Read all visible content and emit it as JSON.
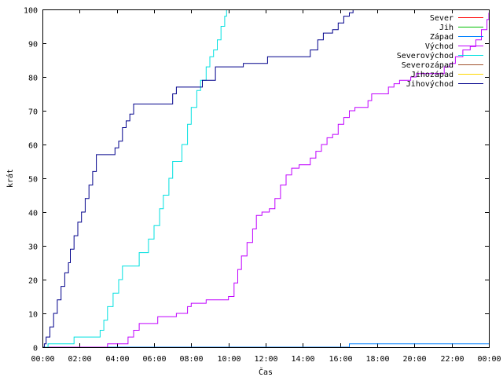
{
  "chart_data": {
    "type": "line",
    "title": "",
    "xlabel": "Čas",
    "ylabel": "krát",
    "xlim": [
      0,
      24
    ],
    "ylim": [
      0,
      100
    ],
    "grid": false,
    "legend_position": "top-right",
    "x_ticks": [
      {
        "value": 0,
        "label": "00:00"
      },
      {
        "value": 2,
        "label": "02:00"
      },
      {
        "value": 4,
        "label": "04:00"
      },
      {
        "value": 6,
        "label": "06:00"
      },
      {
        "value": 8,
        "label": "08:00"
      },
      {
        "value": 10,
        "label": "10:00"
      },
      {
        "value": 12,
        "label": "12:00"
      },
      {
        "value": 14,
        "label": "14:00"
      },
      {
        "value": 16,
        "label": "16:00"
      },
      {
        "value": 18,
        "label": "18:00"
      },
      {
        "value": 20,
        "label": "20:00"
      },
      {
        "value": 22,
        "label": "22:00"
      },
      {
        "value": 24,
        "label": "00:00"
      }
    ],
    "y_ticks": [
      {
        "value": 0,
        "label": "0"
      },
      {
        "value": 10,
        "label": "10"
      },
      {
        "value": 20,
        "label": "20"
      },
      {
        "value": 30,
        "label": "30"
      },
      {
        "value": 40,
        "label": "40"
      },
      {
        "value": 50,
        "label": "50"
      },
      {
        "value": 60,
        "label": "60"
      },
      {
        "value": 70,
        "label": "70"
      },
      {
        "value": 80,
        "label": "80"
      },
      {
        "value": 90,
        "label": "90"
      },
      {
        "value": 100,
        "label": "100"
      }
    ],
    "series": [
      {
        "name": "Sever",
        "color": "#ff0000",
        "step": true,
        "points": []
      },
      {
        "name": "Jih",
        "color": "#00c000",
        "step": true,
        "points": []
      },
      {
        "name": "Západ",
        "color": "#0080ff",
        "step": true,
        "points": [
          [
            0,
            0
          ],
          [
            16.5,
            0
          ],
          [
            16.5,
            1
          ],
          [
            24,
            1
          ]
        ]
      },
      {
        "name": "Východ",
        "color": "#c000ff",
        "step": true,
        "points": [
          [
            0,
            0
          ],
          [
            3.5,
            0
          ],
          [
            3.5,
            1
          ],
          [
            4.6,
            1
          ],
          [
            4.6,
            3
          ],
          [
            4.9,
            3
          ],
          [
            4.9,
            5
          ],
          [
            5.2,
            5
          ],
          [
            5.2,
            7
          ],
          [
            6.2,
            7
          ],
          [
            6.2,
            9
          ],
          [
            7.2,
            9
          ],
          [
            7.2,
            10
          ],
          [
            7.8,
            10
          ],
          [
            7.8,
            12
          ],
          [
            8.0,
            12
          ],
          [
            8.0,
            13
          ],
          [
            8.8,
            13
          ],
          [
            8.8,
            14
          ],
          [
            9.8,
            14
          ],
          [
            10.0,
            15
          ],
          [
            10.3,
            19
          ],
          [
            10.5,
            23
          ],
          [
            10.7,
            27
          ],
          [
            11.0,
            31
          ],
          [
            11.3,
            35
          ],
          [
            11.5,
            39
          ],
          [
            11.8,
            40
          ],
          [
            12.2,
            41
          ],
          [
            12.5,
            44
          ],
          [
            12.8,
            48
          ],
          [
            13.1,
            51
          ],
          [
            13.4,
            53
          ],
          [
            13.8,
            54
          ],
          [
            14.1,
            54
          ],
          [
            14.4,
            56
          ],
          [
            14.7,
            58
          ],
          [
            15.0,
            60
          ],
          [
            15.3,
            62
          ],
          [
            15.6,
            63
          ],
          [
            15.9,
            66
          ],
          [
            16.2,
            68
          ],
          [
            16.5,
            70
          ],
          [
            16.8,
            71
          ],
          [
            17.3,
            71
          ],
          [
            17.5,
            73
          ],
          [
            17.7,
            75
          ],
          [
            18.4,
            75
          ],
          [
            18.6,
            77
          ],
          [
            18.9,
            78
          ],
          [
            19.2,
            79
          ],
          [
            19.5,
            79
          ],
          [
            19.8,
            80
          ],
          [
            20.1,
            81
          ],
          [
            21.3,
            81
          ],
          [
            21.6,
            83
          ],
          [
            21.9,
            84
          ],
          [
            22.2,
            86
          ],
          [
            22.6,
            88
          ],
          [
            23.0,
            89
          ],
          [
            23.3,
            91
          ],
          [
            23.6,
            94
          ],
          [
            23.9,
            97
          ],
          [
            24.0,
            99
          ]
        ]
      },
      {
        "name": "Severovýchod",
        "color": "#00e0e0",
        "step": true,
        "points": [
          [
            0,
            0
          ],
          [
            0.2,
            0
          ],
          [
            0.3,
            1
          ],
          [
            1.6,
            1
          ],
          [
            1.7,
            3
          ],
          [
            3.0,
            3
          ],
          [
            3.1,
            5
          ],
          [
            3.3,
            8
          ],
          [
            3.5,
            12
          ],
          [
            3.8,
            16
          ],
          [
            4.1,
            20
          ],
          [
            4.3,
            24
          ],
          [
            5.0,
            24
          ],
          [
            5.2,
            28
          ],
          [
            5.5,
            28
          ],
          [
            5.7,
            32
          ],
          [
            6.0,
            36
          ],
          [
            6.3,
            41
          ],
          [
            6.5,
            45
          ],
          [
            6.8,
            50
          ],
          [
            7.0,
            55
          ],
          [
            7.3,
            55
          ],
          [
            7.5,
            60
          ],
          [
            7.8,
            66
          ],
          [
            8.0,
            71
          ],
          [
            8.3,
            76
          ],
          [
            8.5,
            79
          ],
          [
            8.8,
            83
          ],
          [
            9.0,
            86
          ],
          [
            9.2,
            88
          ],
          [
            9.4,
            91
          ],
          [
            9.6,
            95
          ],
          [
            9.8,
            98
          ],
          [
            9.9,
            100
          ]
        ]
      },
      {
        "name": "Severozápad",
        "color": "#a0522d",
        "step": true,
        "points": []
      },
      {
        "name": "Jihozápad",
        "color": "#ffd700",
        "step": true,
        "points": []
      },
      {
        "name": "Jihovýchod",
        "color": "#00008b",
        "step": true,
        "points": [
          [
            0,
            0
          ],
          [
            0.1,
            1
          ],
          [
            0.2,
            3
          ],
          [
            0.4,
            6
          ],
          [
            0.6,
            10
          ],
          [
            0.8,
            14
          ],
          [
            1.0,
            18
          ],
          [
            1.2,
            22
          ],
          [
            1.4,
            25
          ],
          [
            1.5,
            29
          ],
          [
            1.7,
            33
          ],
          [
            1.9,
            37
          ],
          [
            2.1,
            40
          ],
          [
            2.3,
            44
          ],
          [
            2.5,
            48
          ],
          [
            2.7,
            52
          ],
          [
            2.9,
            57
          ],
          [
            3.7,
            57
          ],
          [
            3.9,
            59
          ],
          [
            4.1,
            61
          ],
          [
            4.3,
            65
          ],
          [
            4.5,
            67
          ],
          [
            4.7,
            69
          ],
          [
            4.9,
            72
          ],
          [
            6.8,
            72
          ],
          [
            7.0,
            75
          ],
          [
            7.2,
            77
          ],
          [
            8.5,
            77
          ],
          [
            8.6,
            79
          ],
          [
            9.0,
            79
          ],
          [
            9.3,
            83
          ],
          [
            10.2,
            83
          ],
          [
            10.8,
            84
          ],
          [
            12.0,
            84
          ],
          [
            12.1,
            86
          ],
          [
            14.0,
            86
          ],
          [
            14.4,
            88
          ],
          [
            14.8,
            91
          ],
          [
            15.1,
            93
          ],
          [
            15.6,
            94
          ],
          [
            15.9,
            96
          ],
          [
            16.2,
            98
          ],
          [
            16.5,
            99
          ],
          [
            16.7,
            100
          ]
        ]
      }
    ]
  }
}
